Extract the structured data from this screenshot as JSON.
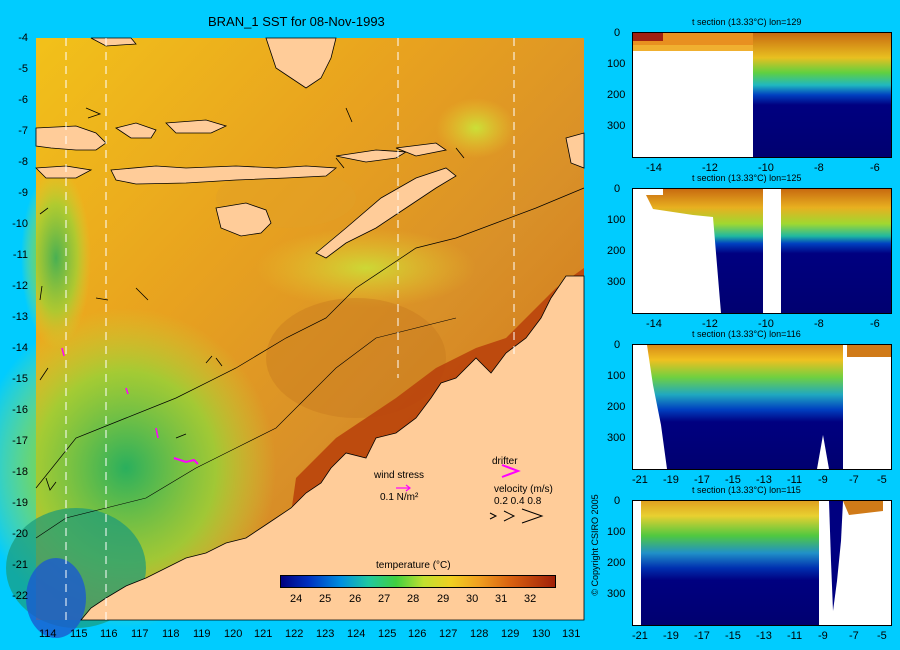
{
  "main_map": {
    "title": "BRAN_1 SST for 08-Nov-1993",
    "lat_ticks": [
      "-4",
      "-5",
      "-6",
      "-7",
      "-8",
      "-9",
      "-10",
      "-11",
      "-12",
      "-13",
      "-14",
      "-15",
      "-16",
      "-17",
      "-18",
      "-19",
      "-20",
      "-21",
      "-22"
    ],
    "lon_ticks": [
      "114",
      "115",
      "116",
      "117",
      "118",
      "119",
      "120",
      "121",
      "122",
      "123",
      "124",
      "125",
      "126",
      "127",
      "128",
      "129",
      "130",
      "131"
    ],
    "wind_stress_label": "wind stress",
    "wind_stress_scale": "0.1 N/m²",
    "drifter_label": "drifter",
    "velocity_label": "velocity (m/s)",
    "velocity_scale": "0.2 0.4 0.8",
    "colorbar_title": "temperature (°C)",
    "colorbar_ticks": [
      "24",
      "25",
      "26",
      "27",
      "28",
      "29",
      "30",
      "31",
      "32"
    ],
    "colors": {
      "land": "#ffcc99",
      "background": "#00ccff",
      "drifter": "#ff00ff"
    }
  },
  "sections": [
    {
      "title": "t section (13.33°C) lon=129",
      "x_ticks": [
        "-14",
        "-12",
        "-10",
        "-8",
        "-6"
      ],
      "y_ticks": [
        "0",
        "100",
        "200",
        "300"
      ]
    },
    {
      "title": "t section (13.33°C) lon=125",
      "x_ticks": [
        "-14",
        "-12",
        "-10",
        "-8",
        "-6"
      ],
      "y_ticks": [
        "0",
        "100",
        "200",
        "300"
      ]
    },
    {
      "title": "t section (13.33°C) lon=116",
      "x_ticks": [
        "-21",
        "-19",
        "-17",
        "-15",
        "-13",
        "-11",
        "-9",
        "-7",
        "-5"
      ],
      "y_ticks": [
        "0",
        "100",
        "200",
        "300"
      ]
    },
    {
      "title": "t section (13.33°C) lon=115",
      "x_ticks": [
        "-21",
        "-19",
        "-17",
        "-15",
        "-13",
        "-11",
        "-9",
        "-7",
        "-5"
      ],
      "y_ticks": [
        "0",
        "100",
        "200",
        "300"
      ]
    }
  ],
  "copyright": "© Copyright CSIRO 2005"
}
